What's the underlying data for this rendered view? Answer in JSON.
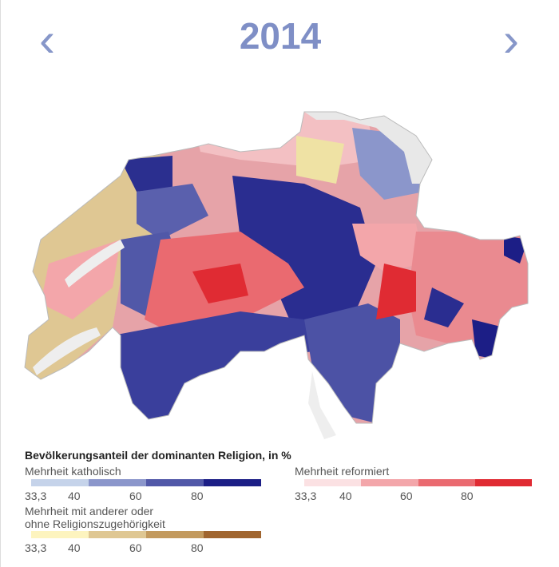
{
  "header": {
    "year": "2014",
    "prev_icon": "chevron-left-icon",
    "next_icon": "chevron-right-icon",
    "prev": "‹",
    "next": "›"
  },
  "legend": {
    "title": "Bevölkerungsanteil der dominanten Religion, in %",
    "catholic": {
      "label": "Mehrheit katholisch",
      "colors": [
        "#c5d3ea",
        "#8b96cb",
        "#5158a8",
        "#1c1e86"
      ],
      "ticks": [
        "33,3",
        "40",
        "60",
        "80"
      ]
    },
    "reformed": {
      "label": "Mehrheit reformiert",
      "colors": [
        "#fbe1e3",
        "#f3a6aa",
        "#ea6a70",
        "#e02b33"
      ],
      "ticks": [
        "33,3",
        "40",
        "60",
        "80"
      ]
    },
    "other": {
      "label_line1": "Mehrheit mit anderer oder",
      "label_line2": "ohne Religionszugehörigkeit",
      "colors": [
        "#fdf4bf",
        "#dfc793",
        "#c39a5e",
        "#a0652f"
      ],
      "ticks": [
        "33,3",
        "40",
        "60",
        "80"
      ]
    }
  }
}
